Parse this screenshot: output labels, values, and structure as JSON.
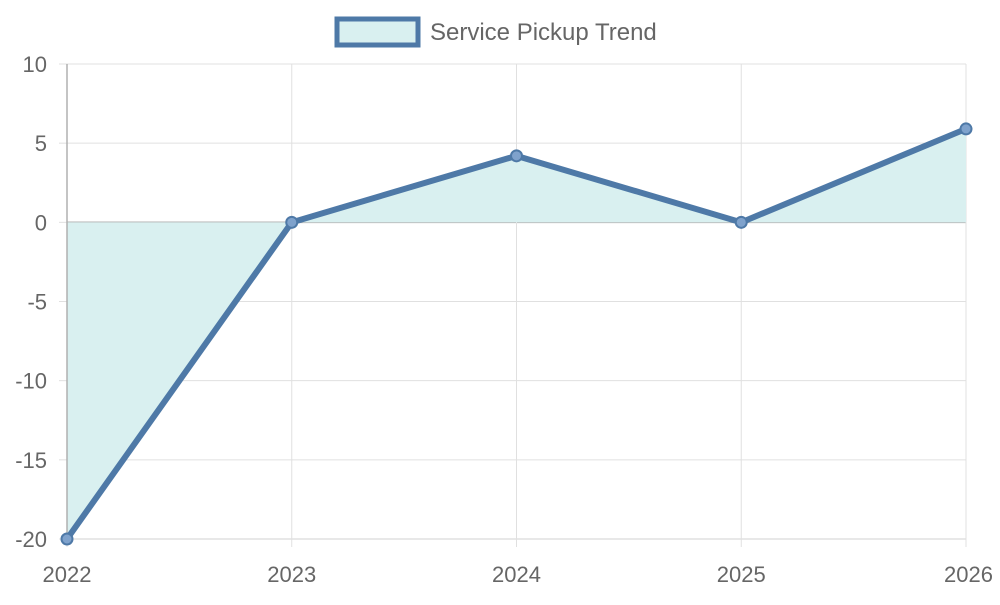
{
  "chart_data": {
    "type": "area",
    "title": "",
    "xlabel": "",
    "ylabel": "",
    "x": [
      "2022",
      "2023",
      "2024",
      "2025",
      "2026"
    ],
    "ylim": [
      -20,
      10
    ],
    "yticks": [
      10,
      5,
      0,
      -5,
      -10,
      -15,
      -20
    ],
    "grid": true,
    "legend_position": "top-center",
    "series": [
      {
        "name": "Service Pickup Trend",
        "values": [
          -20,
          0,
          4.2,
          0,
          5.9
        ],
        "line_color": "#4e79a7",
        "fill_color": "#d9f0f0"
      }
    ]
  },
  "colors": {
    "grid": "#e0e0e0",
    "zero_line": "#b0b0b0",
    "axis": "#b0b0b0",
    "text": "#666666"
  }
}
